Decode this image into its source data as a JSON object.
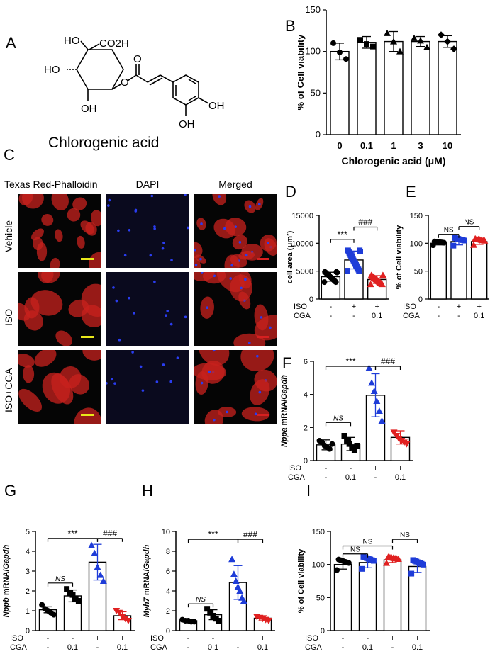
{
  "panels": {
    "A": "A",
    "B": "B",
    "C": "C",
    "D": "D",
    "E": "E",
    "F": "F",
    "G": "G",
    "H": "H",
    "I": "I"
  },
  "panel_a": {
    "compound_name": "Chlorogenic acid",
    "atom_labels": [
      "HO",
      "CO2H",
      "HO",
      "OH",
      "O",
      "O",
      "OH",
      "OH"
    ]
  },
  "panel_c": {
    "columns": [
      "Texas  Red-Phalloidin",
      "DAPI",
      "Merged"
    ],
    "rows": [
      "Vehicle",
      "ISO",
      "ISO+CGA"
    ],
    "colors": {
      "phalloidin": "#c8221e",
      "dapi": "#2a3df0",
      "scalebar_yellow": "#e8e81a",
      "scalebar_red": "#d62020"
    }
  },
  "chart_data": [
    {
      "id": "B",
      "type": "bar",
      "categories": [
        "0",
        "0.1",
        "1",
        "3",
        "10"
      ],
      "values": [
        100,
        111,
        112,
        112,
        112
      ],
      "errors": [
        10,
        7,
        12,
        6,
        7
      ],
      "points": [
        [
          110,
          99,
          91
        ],
        [
          114,
          109,
          106
        ],
        [
          122,
          112,
          100
        ],
        [
          116,
          113,
          105
        ],
        [
          120,
          112,
          103
        ]
      ],
      "ylabel": "% of Cell viability",
      "xlabel": "Chlorogenic acid (μM)",
      "ylim": [
        0,
        150
      ],
      "yticks": [
        0,
        50,
        100,
        150
      ],
      "colors": [
        "#000000",
        "#000000",
        "#000000",
        "#000000",
        "#000000"
      ],
      "markers": [
        "circle",
        "square",
        "triangle",
        "triangle",
        "diamond"
      ]
    },
    {
      "id": "D",
      "type": "bar",
      "values": [
        4000,
        7000,
        3500
      ],
      "errors": [
        800,
        1600,
        700
      ],
      "ylabel": "cell area (μm²)",
      "ylim": [
        0,
        15000
      ],
      "yticks": [
        0,
        5000,
        10000,
        15000
      ],
      "colors": [
        "#000000",
        "#1e3cd8",
        "#e02020"
      ],
      "markers": [
        "circle",
        "square",
        "triangle"
      ],
      "treatments": [
        [
          "ISO",
          "-",
          "+",
          "+"
        ],
        [
          "CGA",
          "-",
          "-",
          "0.1"
        ]
      ],
      "sig": [
        {
          "from": 0,
          "to": 1,
          "label": "***",
          "y": 10700
        },
        {
          "from": 1,
          "to": 2,
          "label": "###",
          "y": 12900
        }
      ]
    },
    {
      "id": "E",
      "type": "bar",
      "values": [
        100,
        103,
        103
      ],
      "errors": [
        3,
        6,
        5
      ],
      "ylabel": "% of Cell viability",
      "ylim": [
        0,
        150
      ],
      "yticks": [
        0,
        50,
        100,
        150
      ],
      "colors": [
        "#000000",
        "#1e3cd8",
        "#e02020"
      ],
      "markers": [
        "circle",
        "square",
        "triangle"
      ],
      "treatments": [
        [
          "ISO",
          "-",
          "+",
          "+"
        ],
        [
          "CGA",
          "-",
          "-",
          "0.1"
        ]
      ],
      "sig": [
        {
          "from": 0,
          "to": 1,
          "label": "NS",
          "y": 116
        },
        {
          "from": 1,
          "to": 2,
          "label": "NS",
          "y": 130
        }
      ]
    },
    {
      "id": "F",
      "type": "bar",
      "values": [
        0.95,
        1.0,
        3.95,
        1.4
      ],
      "errors": [
        0.3,
        0.4,
        1.3,
        0.4
      ],
      "points": [
        [
          1.2,
          1.1,
          0.9,
          0.8,
          0.7,
          1.0
        ],
        [
          1.5,
          1.2,
          1.0,
          0.8,
          0.6,
          0.9
        ],
        [
          5.6,
          4.7,
          4.2,
          3.6,
          3.0,
          2.4
        ],
        [
          1.7,
          1.5,
          1.3,
          1.2,
          1.1,
          1.0
        ]
      ],
      "ylabel": "Nppa mRNA/Gapdh",
      "ylim": [
        0,
        6
      ],
      "yticks": [
        0,
        2,
        4,
        6
      ],
      "colors": [
        "#000000",
        "#000000",
        "#1e3cd8",
        "#e02020"
      ],
      "markers": [
        "circle",
        "square",
        "triangle",
        "triangle-down"
      ],
      "treatments": [
        [
          "ISO",
          "-",
          "-",
          "+",
          "+"
        ],
        [
          "CGA",
          "-",
          "0.1",
          "-",
          "0.1"
        ]
      ],
      "sig": [
        {
          "from": 0,
          "to": 1,
          "label": "NS",
          "y": 2.3,
          "italic": true
        },
        {
          "from": 0,
          "to": 2,
          "label": "***",
          "y": 5.7
        },
        {
          "from": 2,
          "to": 3,
          "label": "###",
          "y": 5.7
        }
      ]
    },
    {
      "id": "G",
      "type": "bar",
      "values": [
        1.05,
        1.75,
        3.45,
        0.75
      ],
      "errors": [
        0.15,
        0.3,
        0.9,
        0.2
      ],
      "points": [
        [
          1.3,
          1.1,
          1.0,
          0.9,
          0.8
        ],
        [
          2.1,
          1.9,
          1.8,
          1.6,
          1.5
        ],
        [
          4.3,
          3.9,
          3.2,
          2.8,
          2.5
        ],
        [
          1.0,
          0.9,
          0.7,
          0.6,
          0.5
        ]
      ],
      "ylabel": "Nppb mRNA/Gapdh",
      "ylim": [
        0,
        5
      ],
      "yticks": [
        0,
        1,
        2,
        3,
        4,
        5
      ],
      "colors": [
        "#000000",
        "#000000",
        "#1e3cd8",
        "#e02020"
      ],
      "markers": [
        "circle",
        "square",
        "triangle",
        "triangle-down"
      ],
      "treatments": [
        [
          "ISO",
          "-",
          "-",
          "+",
          "+"
        ],
        [
          "CGA",
          "-",
          "0.1",
          "-",
          "0.1"
        ]
      ],
      "sig": [
        {
          "from": 0,
          "to": 1,
          "label": "NS",
          "y": 2.4,
          "italic": true
        },
        {
          "from": 0,
          "to": 2,
          "label": "***",
          "y": 4.65
        },
        {
          "from": 2,
          "to": 3,
          "label": "###",
          "y": 4.65
        }
      ]
    },
    {
      "id": "H",
      "type": "bar",
      "values": [
        1.0,
        1.6,
        4.85,
        1.25
      ],
      "errors": [
        0.1,
        0.5,
        1.7,
        0.25
      ],
      "points": [
        [
          1.1,
          1.0,
          1.0,
          0.9,
          0.9
        ],
        [
          2.2,
          1.8,
          1.5,
          1.2,
          1.0
        ],
        [
          7.2,
          5.7,
          5.0,
          4.4,
          4.0,
          3.3,
          3.0
        ],
        [
          1.4,
          1.3,
          1.2,
          1.1,
          1.0
        ]
      ],
      "ylabel": "Myh7 mRNA/Gapdh",
      "ylim": [
        0,
        10
      ],
      "yticks": [
        0,
        2,
        4,
        6,
        8,
        10
      ],
      "colors": [
        "#000000",
        "#000000",
        "#1e3cd8",
        "#e02020"
      ],
      "markers": [
        "circle",
        "square",
        "triangle",
        "triangle-down"
      ],
      "treatments": [
        [
          "ISO",
          "-",
          "-",
          "+",
          "+"
        ],
        [
          "CGA",
          "-",
          "0.1",
          "-",
          "0.1"
        ]
      ],
      "sig": [
        {
          "from": 0,
          "to": 1,
          "label": "NS",
          "y": 2.7,
          "italic": true
        },
        {
          "from": 0,
          "to": 2,
          "label": "***",
          "y": 9.2
        },
        {
          "from": 2,
          "to": 3,
          "label": "###",
          "y": 9.2
        }
      ]
    },
    {
      "id": "I",
      "type": "bar",
      "values": [
        100,
        103,
        107,
        97
      ],
      "errors": [
        7,
        8,
        4,
        9
      ],
      "ylabel": "% of Cell viability",
      "ylim": [
        0,
        150
      ],
      "yticks": [
        0,
        50,
        100,
        150
      ],
      "colors": [
        "#000000",
        "#1e3cd8",
        "#e02020",
        "#1e3cd8"
      ],
      "markers": [
        "circle",
        "square",
        "triangle",
        "square"
      ],
      "treatments": [
        [
          "ISO",
          "-",
          "-",
          "+",
          "+"
        ],
        [
          "CGA",
          "-",
          "0.1",
          "-",
          "0.1"
        ]
      ],
      "sig": [
        {
          "from": 0,
          "to": 1,
          "label": "NS",
          "y": 116
        },
        {
          "from": 0,
          "to": 2,
          "label": "NS",
          "y": 128
        },
        {
          "from": 2,
          "to": 3,
          "label": "NS",
          "y": 138
        }
      ]
    }
  ]
}
